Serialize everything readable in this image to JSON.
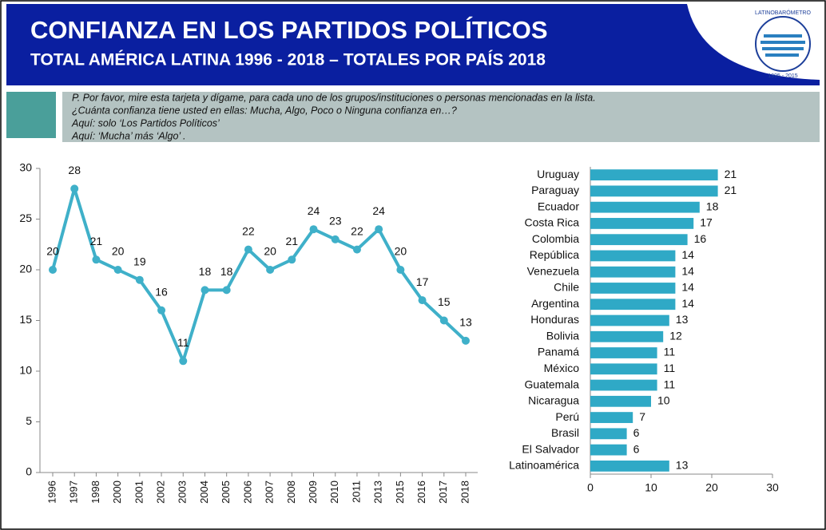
{
  "header": {
    "title": "CONFIANZA EN LOS PARTIDOS POLÍTICOS",
    "subtitle": "TOTAL AMÉRICA LATINA 1996 - 2018 – TOTALES POR PAÍS 2018",
    "logo": "LATINOBARÓMETRO",
    "logo_years": "1995 - 2015"
  },
  "question": [
    "P. Por favor, mire esta tarjeta y dígame, para cada uno de los grupos/instituciones o personas mencionadas en la lista.",
    "¿Cuánta confianza tiene usted en ellas: Mucha, Algo, Poco o Ninguna confianza en…?",
    "Aquí: solo ‘Los Partidos Políticos’",
    "Aquí: ‘Mucha’ más ‘Algo’ ."
  ],
  "chart_data": [
    {
      "type": "line",
      "color": "#3fb0c9",
      "categories": [
        "1996",
        "1997",
        "1998",
        "2000",
        "2001",
        "2002",
        "2003",
        "2004",
        "2005",
        "2006",
        "2007",
        "2008",
        "2009",
        "2010",
        "2011",
        "2013",
        "2015",
        "2016",
        "2017",
        "2018"
      ],
      "values": [
        20,
        28,
        21,
        20,
        19,
        16,
        11,
        18,
        18,
        22,
        20,
        21,
        24,
        23,
        22,
        24,
        20,
        17,
        15,
        13
      ],
      "ylim": [
        0,
        30
      ],
      "yticks": [
        0,
        5,
        10,
        15,
        20,
        25,
        30
      ]
    },
    {
      "type": "hbar",
      "color": "#2fa9c6",
      "categories": [
        "Uruguay",
        "Paraguay",
        "Ecuador",
        "Costa Rica",
        "Colombia",
        "República",
        "Venezuela",
        "Chile",
        "Argentina",
        "Honduras",
        "Bolivia",
        "Panamá",
        "México",
        "Guatemala",
        "Nicaragua",
        "Perú",
        "Brasil",
        "El Salvador",
        "Latinoamérica"
      ],
      "values": [
        21,
        21,
        18,
        17,
        16,
        14,
        14,
        14,
        14,
        13,
        12,
        11,
        11,
        11,
        10,
        7,
        6,
        6,
        13
      ],
      "xlim": [
        0,
        30
      ],
      "xticks": [
        0,
        10,
        20,
        30
      ]
    }
  ]
}
